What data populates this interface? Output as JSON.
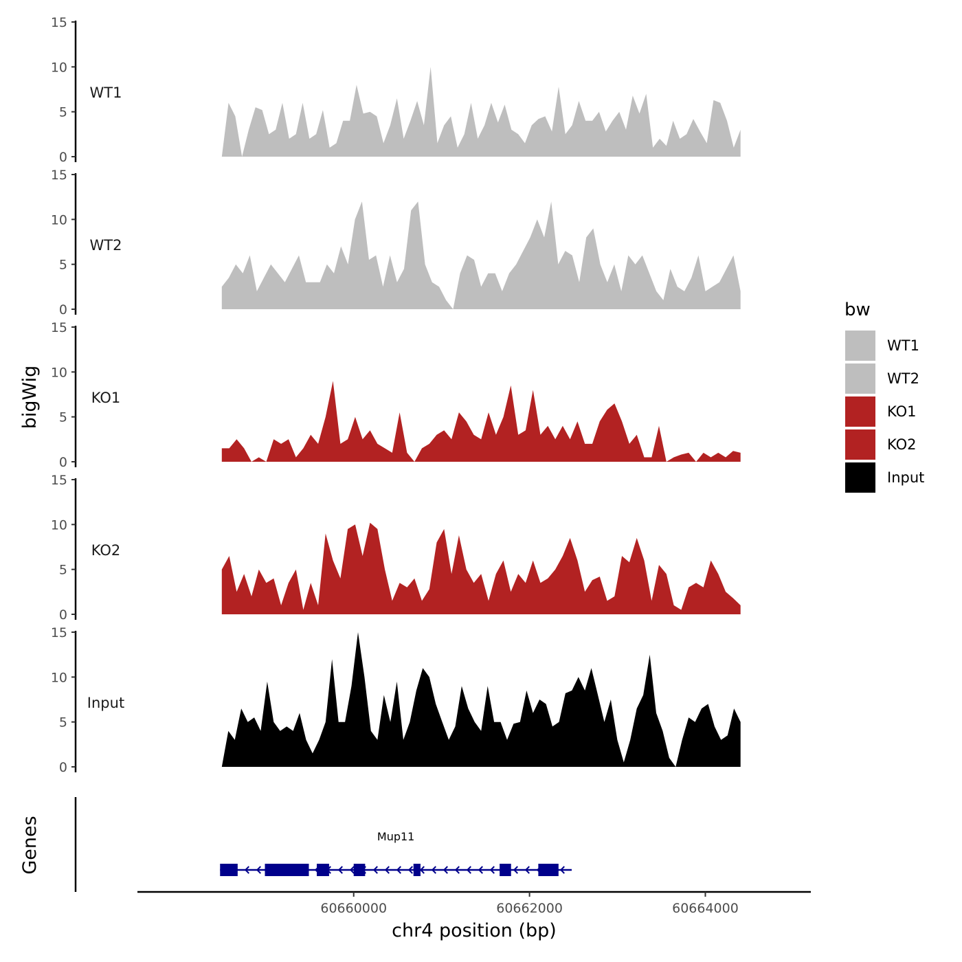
{
  "chart_data": {
    "type": "area",
    "title": "",
    "ylabel": "bigWig",
    "xlabel": "chr4 position (bp)",
    "genes_label": "Genes",
    "ylim": [
      0,
      15
    ],
    "yticks": [
      "0",
      "5",
      "10",
      "15"
    ],
    "xlim": [
      60657540,
      60665200
    ],
    "xrange": [
      60658500,
      60664400
    ],
    "xticks": [
      {
        "value": 60660000,
        "label": "60660000"
      },
      {
        "value": 60662000,
        "label": "60662000"
      },
      {
        "value": 60664000,
        "label": "60664000"
      }
    ],
    "legend": {
      "title": "bw",
      "entries": [
        {
          "name": "WT1",
          "color": "#bebebe"
        },
        {
          "name": "WT2",
          "color": "#bebebe"
        },
        {
          "name": "KO1",
          "color": "#b22222"
        },
        {
          "name": "KO2",
          "color": "#b22222"
        },
        {
          "name": "Input",
          "color": "#000000"
        }
      ]
    },
    "series": [
      {
        "name": "WT1",
        "color": "#bebebe",
        "values": [
          0,
          6,
          4.5,
          0,
          3,
          5.5,
          5.2,
          2.5,
          3,
          6,
          2,
          2.5,
          6,
          2,
          2.5,
          5.2,
          1,
          1.5,
          4,
          4,
          8,
          4.8,
          5,
          4.5,
          1.5,
          3.5,
          6.5,
          2,
          4,
          6.2,
          3.5,
          10,
          1.5,
          3.5,
          4.5,
          1,
          2.5,
          6,
          2,
          3.5,
          6,
          3.8,
          5.8,
          3,
          2.5,
          1.5,
          3.5,
          4.2,
          4.5,
          2.8,
          7.8,
          2.5,
          3.5,
          6.2,
          4,
          4,
          5,
          2.8,
          4,
          5,
          3,
          6.8,
          4.8,
          7,
          1,
          2,
          1.2,
          4,
          2,
          2.5,
          4.2,
          2.8,
          1.5,
          6.3,
          6,
          4,
          1,
          3
        ]
      },
      {
        "name": "WT2",
        "color": "#bebebe",
        "values": [
          2.5,
          3.5,
          5,
          4,
          6,
          2,
          3.5,
          5,
          4,
          3,
          4.5,
          6,
          3,
          3,
          3,
          5,
          4,
          7,
          5,
          10,
          12,
          5.5,
          6,
          2.5,
          6,
          3,
          4.5,
          11,
          12,
          5,
          3,
          2.5,
          1,
          0,
          4,
          6,
          5.5,
          2.5,
          4,
          4,
          2,
          4,
          5,
          6.5,
          8,
          10,
          8,
          12,
          5,
          6.5,
          6,
          3,
          8,
          9,
          5,
          3,
          5,
          2,
          6,
          5,
          6,
          4,
          2,
          1,
          4.5,
          2.5,
          2,
          3.5,
          6,
          2,
          2.5,
          3,
          4.5,
          6,
          2
        ]
      },
      {
        "name": "KO1",
        "color": "#b22222",
        "values": [
          1.5,
          1.5,
          2.5,
          1.5,
          0,
          0.5,
          0,
          2.5,
          2,
          2.5,
          0.5,
          1.5,
          3,
          2,
          5,
          9,
          2,
          2.5,
          5,
          2.5,
          3.5,
          2,
          1.5,
          1,
          5.5,
          1,
          0,
          1.5,
          2,
          3,
          3.5,
          2.5,
          5.5,
          4.5,
          3,
          2.5,
          5.5,
          3,
          5,
          8.5,
          3,
          3.5,
          8,
          3,
          4,
          2.5,
          4,
          2.5,
          4.5,
          2,
          2,
          4.5,
          5.8,
          6.5,
          4.5,
          2,
          3,
          0.5,
          0.5,
          4,
          0,
          0.5,
          0.8,
          1,
          0,
          1,
          0.5,
          1,
          0.5,
          1.2,
          1
        ]
      },
      {
        "name": "KO2",
        "color": "#b22222",
        "values": [
          5,
          6.5,
          2.5,
          4.5,
          2,
          5,
          3.5,
          4,
          1,
          3.5,
          5,
          0.5,
          3.5,
          1,
          9,
          6,
          4,
          9.5,
          10,
          6.5,
          10.2,
          9.5,
          5,
          1.5,
          3.5,
          3,
          4,
          1.5,
          2.8,
          8,
          9.5,
          4.5,
          8.8,
          5,
          3.5,
          4.5,
          1.5,
          4.5,
          6,
          2.5,
          4.5,
          3.5,
          6,
          3.5,
          4,
          5,
          6.5,
          8.5,
          6,
          2.5,
          3.8,
          4.2,
          1.5,
          2,
          6.5,
          5.8,
          8.5,
          6,
          1.5,
          5.5,
          4.5,
          1,
          0.5,
          3,
          3.5,
          3,
          6,
          4.5,
          2.5,
          1.8,
          1
        ]
      },
      {
        "name": "Input",
        "color": "#000000",
        "values": [
          0,
          4,
          3,
          6.5,
          5,
          5.5,
          4,
          9.5,
          5,
          4,
          4.5,
          4,
          6,
          3,
          1.5,
          3,
          5,
          12,
          5,
          5,
          9,
          15,
          10,
          4,
          3,
          8,
          5,
          9.5,
          3,
          5,
          8.5,
          11,
          10,
          7,
          5,
          3,
          4.5,
          9,
          6.5,
          5,
          4,
          9,
          5,
          5,
          3,
          4.8,
          5,
          8.5,
          6,
          7.5,
          7,
          4.5,
          5,
          8.2,
          8.5,
          10,
          8.5,
          11,
          8,
          5,
          7.5,
          3,
          0.5,
          3,
          6.5,
          8,
          12.5,
          6,
          4,
          1,
          0,
          3,
          5.5,
          5,
          6.5,
          7,
          4.5,
          3,
          3.5,
          6.5,
          5
        ]
      }
    ],
    "gene": {
      "name": "Mup11",
      "start": 60658480,
      "end": 60662480,
      "strand": "-",
      "color": "#00008b",
      "exons": [
        [
          60658480,
          60658680
        ],
        [
          60658990,
          60659490
        ],
        [
          60659580,
          60659720
        ],
        [
          60660000,
          60660130
        ],
        [
          60660680,
          60660760
        ],
        [
          60661660,
          60661790
        ],
        [
          60662100,
          60662330
        ]
      ]
    }
  }
}
